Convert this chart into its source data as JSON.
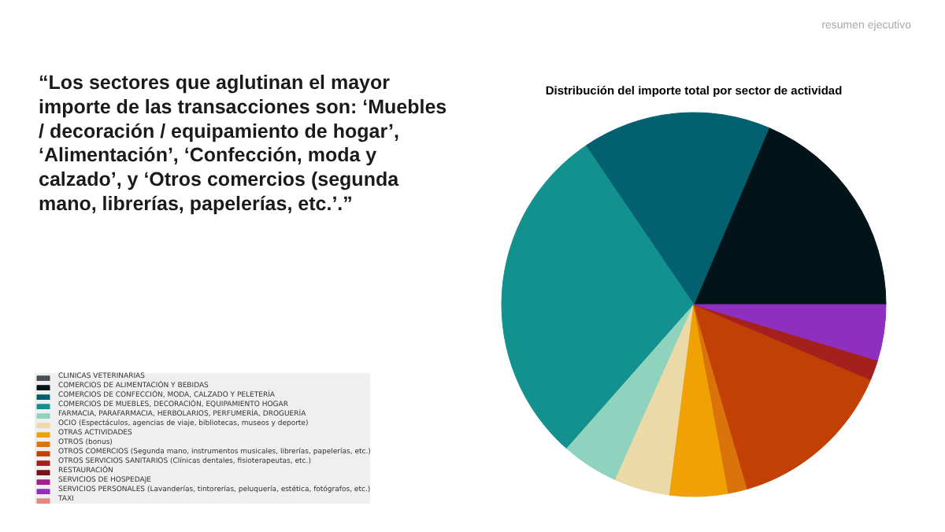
{
  "chart_data": {
    "type": "pie",
    "title": "Distribución del importe total por sector de actividad",
    "categories": [
      "CLINICAS VETERINARIAS",
      "COMERCIOS DE ALIMENTACIÓN Y BEBIDAS",
      "COMERCIOS DE CONFECCIÓN, MODA, CALZADO Y PELETERÍA",
      "COMERCIOS DE MUEBLES, DECORACIÓN, EQUIPAMIENTO HOGAR",
      "FARMACIA, PARAFARMACIA, HERBOLARIOS, PERFUMERÍA, DROGUERÍA",
      "OCIO (Espectáculos, agencias de viaje, bibliotecas, museos y deporte)",
      "OTRAS ACTIVIDADES",
      "OTROS (bonus)",
      "OTROS COMERCIOS (Segunda mano, instrumentos musicales, librerías, papelerías, etc.)",
      "OTROS SERVICIOS SANITARIOS (Clínicas dentales, fisioterapeutas, etc.)",
      "RESTAURACIÓN",
      "SERVICIOS DE HOSPEDAJE",
      "SERVICIOS PERSONALES (Lavanderías, tintorerías, peluquería, estética, fotógrafos, etc.)",
      "TAXI"
    ],
    "values": [
      0,
      18.6,
      15.9,
      29.0,
      4.8,
      4.7,
      4.9,
      1.6,
      14.1,
      1.7,
      0,
      0,
      4.7,
      0
    ],
    "colors": [
      "#4a4f5a",
      "#02141a",
      "#03606e",
      "#12918f",
      "#8fd3bf",
      "#ecd9a8",
      "#f0a104",
      "#d9730a",
      "#c23f05",
      "#a3201d",
      "#7a1018",
      "#a0208c",
      "#8e2fbf",
      "#e08a80"
    ],
    "legend": "bottom left",
    "annotations": [
      "resumen ejecutivo",
      "“Los sectores que aglutinan el mayor\nimporte de las transacciones son: ‘Muebles\n/ decoración / equipamiento de hogar’,\n‘Alimentación’, ‘Confección, moda y\ncalzado’, y ‘Otros comercios (segunda\nmano, librerías, papelerías, etc.’.”"
    ]
  }
}
